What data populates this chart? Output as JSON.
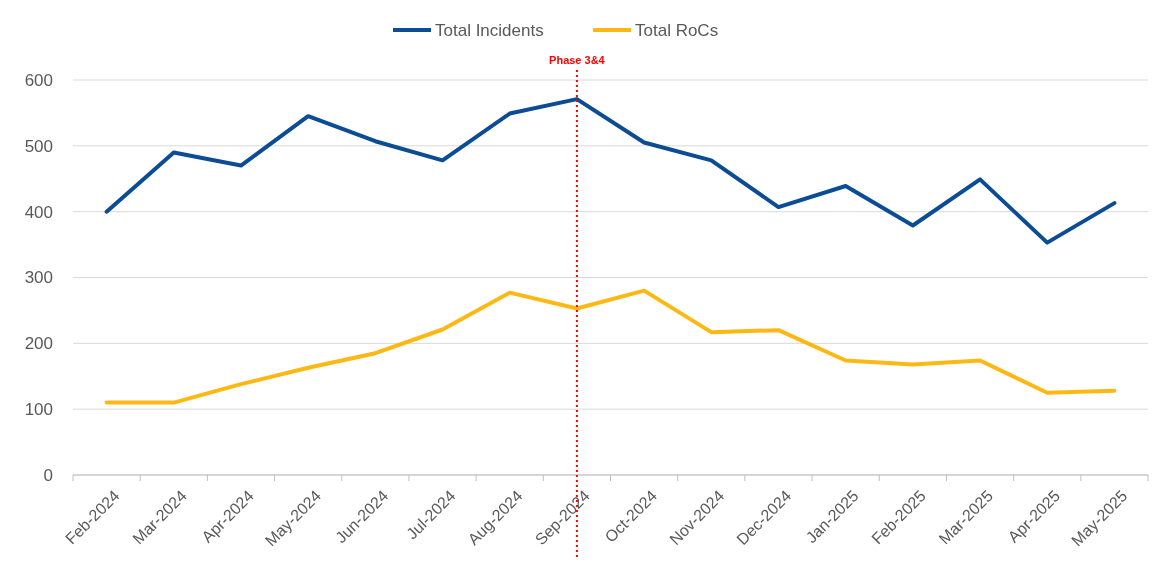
{
  "chart_data": {
    "type": "line",
    "categories": [
      "Feb-2024",
      "Mar-2024",
      "Apr-2024",
      "May-2024",
      "Jun-2024",
      "Jul-2024",
      "Aug-2024",
      "Sep-2024",
      "Oct-2024",
      "Nov-2024",
      "Dec-2024",
      "Jan-2025",
      "Feb-2025",
      "Mar-2025",
      "Apr-2025",
      "May-2025"
    ],
    "series": [
      {
        "name": "Total Incidents",
        "color": "#0b4c94",
        "values": [
          400,
          490,
          470,
          545,
          507,
          478,
          549,
          571,
          505,
          478,
          407,
          439,
          379,
          449,
          353,
          413
        ]
      },
      {
        "name": "Total RoCs",
        "color": "#fdb813",
        "values": [
          110,
          110,
          138,
          163,
          185,
          221,
          277,
          253,
          280,
          217,
          220,
          174,
          168,
          174,
          125,
          128
        ]
      }
    ],
    "ylim": [
      0,
      600
    ],
    "yticks": [
      0,
      100,
      200,
      300,
      400,
      500,
      600
    ],
    "grid": "y",
    "legend": "top",
    "line_style": "solid",
    "ref_lines": [
      {
        "axis": "x",
        "value": "Sep-2024",
        "label": "Phase 3&4",
        "color": "#ff0000",
        "line_style": "dotted"
      }
    ]
  }
}
